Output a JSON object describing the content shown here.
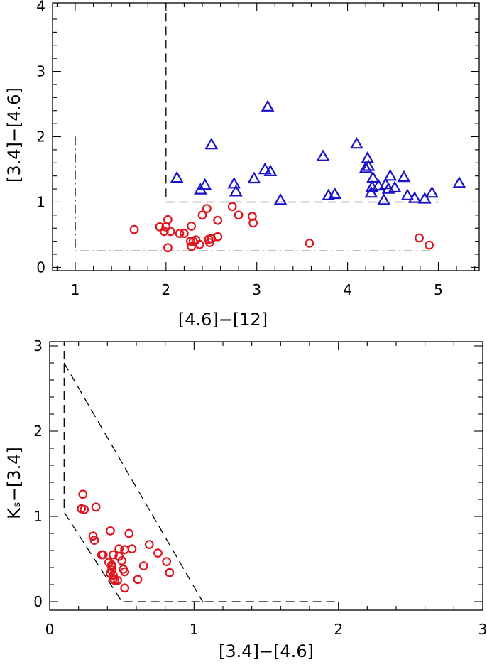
{
  "colors": {
    "red": "#e0141e",
    "blue": "#1a12c8",
    "axes": "#000000"
  },
  "chart_data": [
    {
      "type": "scatter",
      "title": "",
      "xlabel": "[4.6]−[12]",
      "ylabel": "[3.4]−[4.6]",
      "xlim": [
        0.75,
        5.45
      ],
      "ylim": [
        -0.05,
        4.05
      ],
      "xticks": [
        1,
        2,
        3,
        4,
        5
      ],
      "yticks": [
        0,
        1,
        2,
        3,
        4
      ],
      "series": [
        {
          "name": "red-circles",
          "marker": "circle",
          "color": "#e0141e",
          "points": [
            [
              1.65,
              0.58
            ],
            [
              1.93,
              0.62
            ],
            [
              1.98,
              0.55
            ],
            [
              2.0,
              0.62
            ],
            [
              2.02,
              0.73
            ],
            [
              2.05,
              0.55
            ],
            [
              2.15,
              0.52
            ],
            [
              2.2,
              0.52
            ],
            [
              2.02,
              0.3
            ],
            [
              2.27,
              0.4
            ],
            [
              2.28,
              0.32
            ],
            [
              2.3,
              0.4
            ],
            [
              2.33,
              0.42
            ],
            [
              2.28,
              0.63
            ],
            [
              2.37,
              0.35
            ],
            [
              2.4,
              0.8
            ],
            [
              2.45,
              0.9
            ],
            [
              2.47,
              0.43
            ],
            [
              2.48,
              0.38
            ],
            [
              2.5,
              0.44
            ],
            [
              2.57,
              0.47
            ],
            [
              2.57,
              0.72
            ],
            [
              2.73,
              0.93
            ],
            [
              2.8,
              0.8
            ],
            [
              2.95,
              0.78
            ],
            [
              2.96,
              0.68
            ],
            [
              3.58,
              0.37
            ],
            [
              4.79,
              0.45
            ],
            [
              4.9,
              0.34
            ]
          ]
        },
        {
          "name": "blue-triangles",
          "marker": "triangle",
          "color": "#1a12c8",
          "points": [
            [
              2.12,
              1.37
            ],
            [
              2.38,
              1.19
            ],
            [
              2.43,
              1.26
            ],
            [
              2.5,
              1.88
            ],
            [
              2.75,
              1.28
            ],
            [
              2.77,
              1.16
            ],
            [
              2.97,
              1.36
            ],
            [
              3.09,
              1.5
            ],
            [
              3.12,
              2.46
            ],
            [
              3.15,
              1.47
            ],
            [
              3.26,
              1.03
            ],
            [
              3.73,
              1.7
            ],
            [
              3.79,
              1.1
            ],
            [
              3.86,
              1.12
            ],
            [
              4.1,
              1.89
            ],
            [
              4.2,
              1.52
            ],
            [
              4.22,
              1.67
            ],
            [
              4.23,
              1.55
            ],
            [
              4.26,
              1.14
            ],
            [
              4.27,
              1.23
            ],
            [
              4.28,
              1.37
            ],
            [
              4.34,
              1.25
            ],
            [
              4.4,
              1.03
            ],
            [
              4.42,
              1.27
            ],
            [
              4.45,
              1.2
            ],
            [
              4.47,
              1.4
            ],
            [
              4.52,
              1.22
            ],
            [
              4.62,
              1.38
            ],
            [
              4.66,
              1.1
            ],
            [
              4.74,
              1.06
            ],
            [
              4.85,
              1.05
            ],
            [
              4.93,
              1.14
            ],
            [
              5.23,
              1.29
            ]
          ]
        }
      ],
      "guides": [
        {
          "style": "dashed",
          "points": [
            [
              2.0,
              4.1
            ],
            [
              2.0,
              1.0
            ],
            [
              5.0,
              1.0
            ]
          ]
        },
        {
          "style": "dashdot",
          "points": [
            [
              1.0,
              2.0
            ],
            [
              1.0,
              0.25
            ],
            [
              4.95,
              0.25
            ]
          ]
        }
      ]
    },
    {
      "type": "scatter",
      "title": "",
      "xlabel": "[3.4]−[4.6]",
      "ylabel": "Kₛ−[3.4]",
      "xlim": [
        0.0,
        3.0
      ],
      "ylim": [
        -0.1,
        3.05
      ],
      "xticks": [
        0,
        1,
        2,
        3
      ],
      "yticks": [
        0,
        1,
        2,
        3
      ],
      "series": [
        {
          "name": "red-circles",
          "marker": "circle",
          "color": "#e0141e",
          "points": [
            [
              0.23,
              1.26
            ],
            [
              0.22,
              1.09
            ],
            [
              0.24,
              1.08
            ],
            [
              0.32,
              1.11
            ],
            [
              0.3,
              0.77
            ],
            [
              0.31,
              0.72
            ],
            [
              0.36,
              0.55
            ],
            [
              0.37,
              0.55
            ],
            [
              0.41,
              0.46
            ],
            [
              0.42,
              0.33
            ],
            [
              0.42,
              0.83
            ],
            [
              0.43,
              0.43
            ],
            [
              0.43,
              0.41
            ],
            [
              0.43,
              0.37
            ],
            [
              0.44,
              0.31
            ],
            [
              0.44,
              0.27
            ],
            [
              0.44,
              0.55
            ],
            [
              0.45,
              0.25
            ],
            [
              0.47,
              0.25
            ],
            [
              0.48,
              0.53
            ],
            [
              0.48,
              0.62
            ],
            [
              0.5,
              0.48
            ],
            [
              0.52,
              0.61
            ],
            [
              0.51,
              0.38
            ],
            [
              0.52,
              0.35
            ],
            [
              0.52,
              0.16
            ],
            [
              0.55,
              0.8
            ],
            [
              0.57,
              0.62
            ],
            [
              0.61,
              0.26
            ],
            [
              0.65,
              0.42
            ],
            [
              0.69,
              0.67
            ],
            [
              0.75,
              0.57
            ],
            [
              0.81,
              0.47
            ],
            [
              0.83,
              0.34
            ]
          ]
        }
      ],
      "guides": [
        {
          "style": "dashed",
          "points": [
            [
              0.1,
              3.1
            ],
            [
              0.1,
              1.05
            ],
            [
              0.5,
              0.0
            ],
            [
              2.0,
              0.0
            ]
          ]
        },
        {
          "style": "dashed",
          "points": [
            [
              0.1,
              2.8
            ],
            [
              1.06,
              0.0
            ]
          ]
        }
      ]
    }
  ]
}
